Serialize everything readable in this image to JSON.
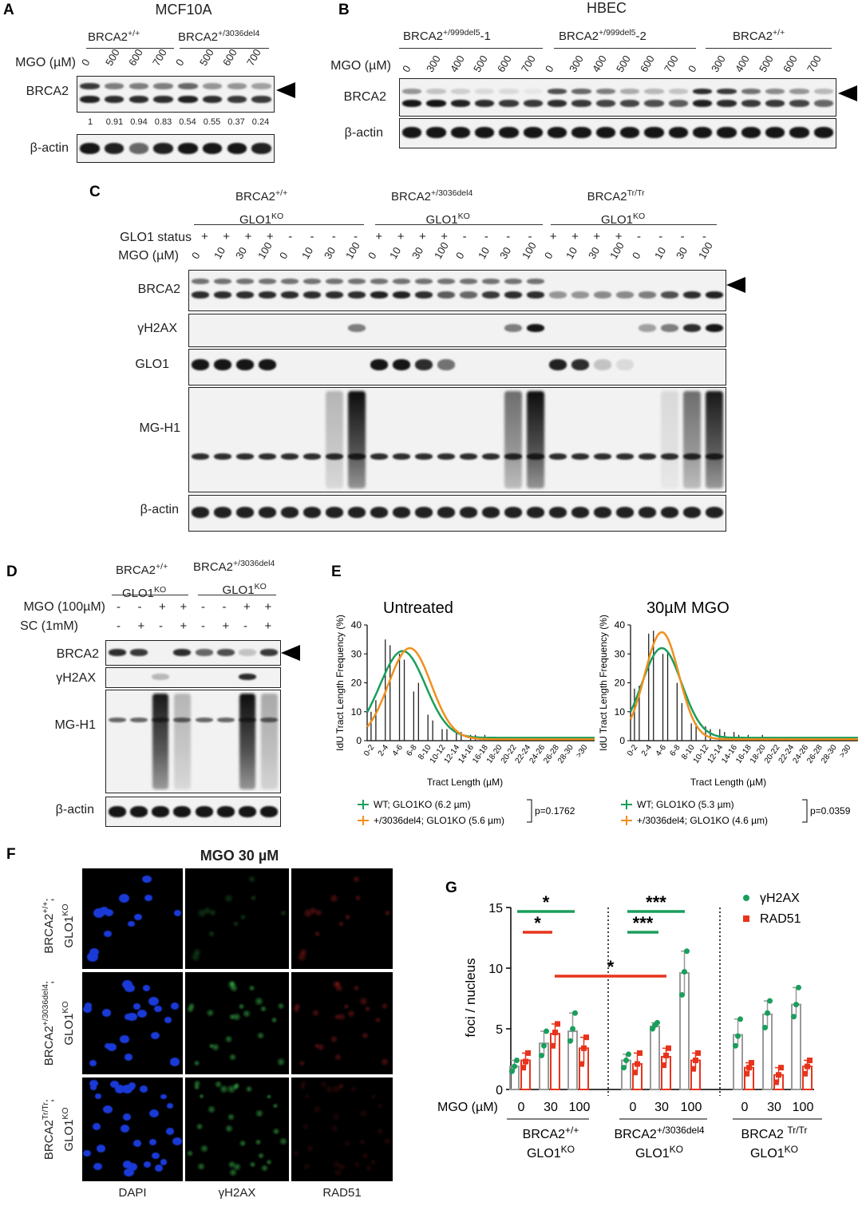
{
  "panelA": {
    "label": "A",
    "title": "MCF10A",
    "groups": [
      "BRCA2+/+",
      "BRCA2+/3036del4"
    ],
    "mgo_label": "MGO (µM)",
    "lanes": [
      "0",
      "500",
      "600",
      "700",
      "0",
      "500",
      "600",
      "700"
    ],
    "rows": [
      "BRCA2",
      "β-actin"
    ],
    "quant": [
      "1",
      "0.91",
      "0.94",
      "0.83",
      "0.54",
      "0.55",
      "0.37",
      "0.24"
    ]
  },
  "panelB": {
    "label": "B",
    "title": "HBEC",
    "groups": [
      "BRCA2+/999del5-1",
      "BRCA2+/999del5-2",
      "BRCA2+/+"
    ],
    "mgo_label": "MGO (µM)",
    "lanes": [
      "0",
      "300",
      "400",
      "500",
      "600",
      "700",
      "0",
      "300",
      "400",
      "500",
      "600",
      "700",
      "0",
      "300",
      "400",
      "500",
      "600",
      "700"
    ],
    "rows": [
      "BRCA2",
      "β-actin"
    ]
  },
  "panelC": {
    "label": "C",
    "groups": [
      "BRCA2+/+ GLO1KO",
      "BRCA2+/3036del4 GLO1KO",
      "BRCA2Tr/Tr GLO1KO"
    ],
    "status_label": "GLO1 status",
    "status": [
      "+",
      "+",
      "+",
      "+",
      "-",
      "-",
      "-",
      "-",
      "+",
      "+",
      "+",
      "+",
      "-",
      "-",
      "-",
      "-",
      "+",
      "+",
      "+",
      "+",
      "-",
      "-",
      "-",
      "-"
    ],
    "mgo_label": "MGO (µM)",
    "lanes": [
      "0",
      "10",
      "30",
      "100",
      "0",
      "10",
      "30",
      "100",
      "0",
      "10",
      "30",
      "100",
      "0",
      "10",
      "30",
      "100",
      "0",
      "10",
      "30",
      "100",
      "0",
      "10",
      "30",
      "100"
    ],
    "rows": [
      "BRCA2",
      "γH2AX",
      "GLO1",
      "MG-H1",
      "β-actin"
    ]
  },
  "panelD": {
    "label": "D",
    "groups": [
      "BRCA2+/+ GLO1KO",
      "BRCA2+/3036del4 GLO1KO"
    ],
    "mgo_label": "MGO (100µM)",
    "mgo": [
      "-",
      "-",
      "+",
      "+",
      "-",
      "-",
      "+",
      "+"
    ],
    "sc_label": "SC (1mM)",
    "sc": [
      "-",
      "+",
      "-",
      "+",
      "-",
      "+",
      "-",
      "+"
    ],
    "rows": [
      "BRCA2",
      "γH2AX",
      "MG-H1",
      "β-actin"
    ]
  },
  "panelE": {
    "label": "E",
    "ylabel": "IdU Tract Length Frequency (%)",
    "xlabel": "Tract Length (µM)",
    "plots": [
      {
        "title": "Untreated",
        "legend": [
          "WT; GLO1KO (6.2 µm)",
          "+/3036del4; GLO1KO (5.6 µm)"
        ],
        "p": "p=0.1762"
      },
      {
        "title": "30µM MGO",
        "legend": [
          "WT; GLO1KO (5.3 µm)",
          "+/3036del4; GLO1KO (4.6 µm)"
        ],
        "p": "p=0.0359"
      }
    ],
    "colors": {
      "wt": "#1a9e5c",
      "mut": "#f0901e"
    }
  },
  "panelF": {
    "label": "F",
    "title": "MGO 30 µM",
    "rows": [
      "BRCA2+/+; GLO1KO",
      "BRCA2+/3036del4; GLO1KO",
      "BRCA2Tr/Tr; GLO1KO"
    ],
    "cols": [
      "DAPI",
      "γH2AX",
      "RAD51"
    ]
  },
  "panelG": {
    "label": "G",
    "ylabel": "foci / nucleus",
    "mgo_label": "MGO (µM)",
    "legend": [
      "γH2AX",
      "RAD51"
    ],
    "groups": [
      "BRCA2+/+ GLO1KO",
      "BRCA2+/3036del4 GLO1KO",
      "BRCA2Tr/Tr GLO1KO"
    ],
    "stars": [
      "*",
      "*",
      "***",
      "***",
      "*"
    ],
    "colors": {
      "gh2ax": "#1a9e5c",
      "rad51": "#e8331c"
    }
  },
  "chart_data": [
    {
      "type": "bar",
      "title": "Untreated",
      "categories": [
        "0-2",
        "2-4",
        "4-6",
        "6-8",
        "8-10",
        "10-12",
        "12-14",
        "14-16",
        "16-18",
        "18-20",
        "20-22",
        "22-24",
        "24-26",
        "26-28",
        "28-30",
        ">30"
      ],
      "series": [
        {
          "name": "WT; GLO1KO (6.2 µm)",
          "values": [
            10,
            35,
            30,
            17,
            9,
            4,
            3,
            2,
            2,
            1,
            1,
            1,
            1,
            0,
            0,
            0
          ]
        },
        {
          "name": "+/3036del4; GLO1KO (5.6 µm)",
          "values": [
            14,
            33,
            28,
            20,
            7,
            4,
            3,
            2,
            1,
            1,
            1,
            0,
            0,
            0,
            0,
            0
          ]
        }
      ],
      "xlabel": "Tract Length (µM)",
      "ylabel": "IdU Tract Length Frequency (%)",
      "ylim": [
        0,
        40
      ]
    },
    {
      "type": "bar",
      "title": "30µM MGO",
      "categories": [
        "0-2",
        "2-4",
        "4-6",
        "6-8",
        "8-10",
        "10-12",
        "12-14",
        "14-16",
        "16-18",
        "18-20",
        "20-22",
        "22-24",
        "24-26",
        "26-28",
        "28-30",
        ">30"
      ],
      "series": [
        {
          "name": "WT; GLO1KO (5.3 µm)",
          "values": [
            18,
            37,
            30,
            20,
            6,
            5,
            4,
            3,
            2,
            2,
            1,
            1,
            1,
            1,
            0,
            0
          ]
        },
        {
          "name": "+/3036del4; GLO1KO (4.6 µm)",
          "values": [
            19,
            38,
            31,
            13,
            6,
            4,
            3,
            2,
            1,
            1,
            1,
            1,
            0,
            0,
            0,
            0
          ]
        }
      ],
      "xlabel": "Tract Length (µM)",
      "ylabel": "IdU Tract Length Frequency (%)",
      "ylim": [
        0,
        40
      ]
    },
    {
      "type": "bar",
      "categories": [
        "0",
        "30",
        "100",
        "0",
        "30",
        "100",
        "0",
        "30",
        "100"
      ],
      "series": [
        {
          "name": "γH2AX",
          "values": [
            1.9,
            3.8,
            4.8,
            2.4,
            5.2,
            9.6,
            4.5,
            6.2,
            7.0
          ],
          "points": [
            [
              1.5,
              1.9,
              2.4
            ],
            [
              2.8,
              3.6,
              4.8
            ],
            [
              4.0,
              5.0,
              6.3
            ],
            [
              1.8,
              2.4,
              2.9
            ],
            [
              5.0,
              5.3,
              5.5
            ],
            [
              7.8,
              9.7,
              11.4
            ],
            [
              3.6,
              4.4,
              5.8
            ],
            [
              5.1,
              6.3,
              7.3
            ],
            [
              6.0,
              7.0,
              8.4
            ]
          ]
        },
        {
          "name": "RAD51",
          "values": [
            2.4,
            4.6,
            3.4,
            2.1,
            2.7,
            2.4,
            1.8,
            1.2,
            1.9
          ],
          "points": [
            [
              1.8,
              2.3,
              3.0
            ],
            [
              3.6,
              4.7,
              5.4
            ],
            [
              2.1,
              3.4,
              4.3
            ],
            [
              1.4,
              2.1,
              3.0
            ],
            [
              2.0,
              2.8,
              3.4
            ],
            [
              1.7,
              2.4,
              3.0
            ],
            [
              1.3,
              1.8,
              2.2
            ],
            [
              0.6,
              1.2,
              1.8
            ],
            [
              1.3,
              1.9,
              2.4
            ]
          ]
        }
      ],
      "ylabel": "foci / nucleus",
      "ylim": [
        0,
        15
      ]
    }
  ]
}
